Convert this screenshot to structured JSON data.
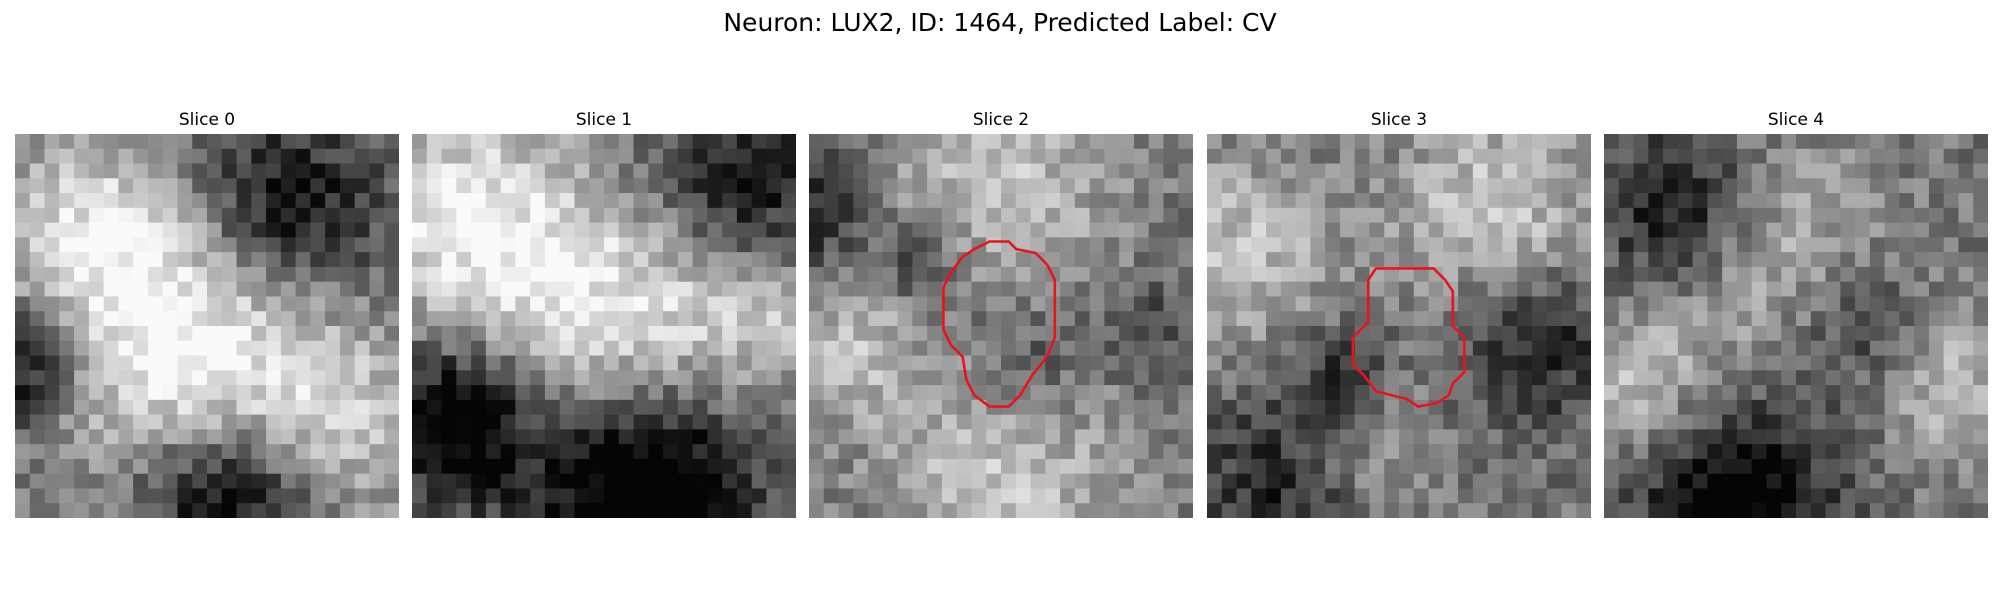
{
  "figure": {
    "title": "Neuron: LUX2, ID: 1464, Predicted Label: CV"
  },
  "panels": [
    {
      "title": "Slice 0",
      "has_contour": false
    },
    {
      "title": "Slice 1",
      "has_contour": false
    },
    {
      "title": "Slice 2",
      "has_contour": true
    },
    {
      "title": "Slice 3",
      "has_contour": true
    },
    {
      "title": "Slice 4",
      "has_contour": false
    }
  ],
  "colors": {
    "contour": "#e8141c",
    "background": "#ffffff",
    "text": "#000000"
  },
  "colormap": "gray"
}
